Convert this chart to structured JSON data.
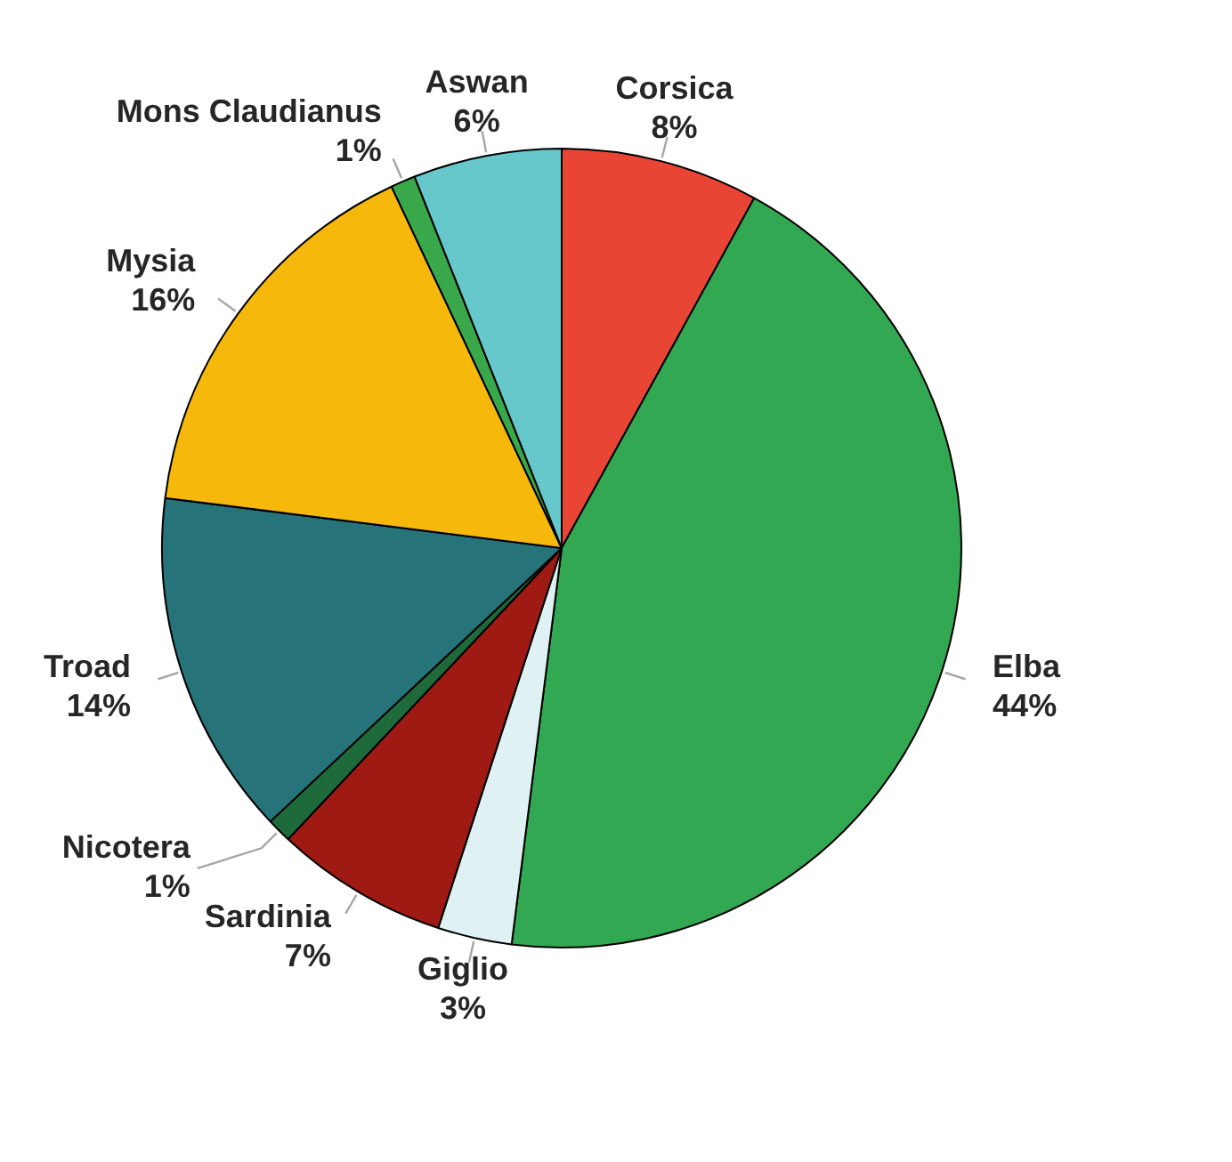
{
  "chart_data": {
    "type": "pie",
    "categories": [
      "Corsica",
      "Elba",
      "Giglio",
      "Sardinia",
      "Nicotera",
      "Troad",
      "Mysia",
      "Mons Claudianus",
      "Aswan"
    ],
    "values": [
      8,
      44,
      3,
      7,
      1,
      14,
      16,
      1,
      6
    ],
    "value_labels": [
      "8%",
      "44%",
      "3%",
      "7%",
      "1%",
      "14%",
      "16%",
      "1%",
      "6%"
    ],
    "colors": [
      "#e84535",
      "#33a852",
      "#dff1f3",
      "#9e1a12",
      "#1e6a3a",
      "#26737a",
      "#f6b90b",
      "#38a84b",
      "#66c8cb"
    ],
    "legend": false
  }
}
